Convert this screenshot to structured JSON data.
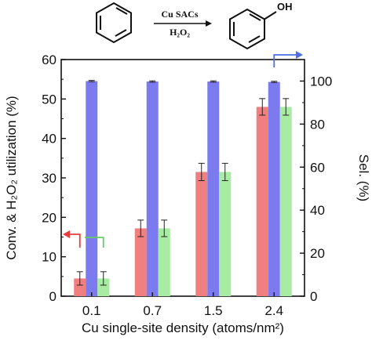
{
  "chart_data": {
    "type": "bar",
    "categories": [
      "0.1",
      "0.7",
      "1.5",
      "2.4"
    ],
    "xlabel": "Cu single-site density (atoms/nm²)",
    "ylabel_left": "Conv. & H₂O₂ utilization (%)",
    "ylabel_right": "Sel. (%)",
    "ylim_left": [
      0,
      60
    ],
    "ylim_right": [
      0,
      110
    ],
    "yticks_left": [
      "0",
      "10",
      "20",
      "30",
      "40",
      "50",
      "60"
    ],
    "yticks_right": [
      "0",
      "20",
      "40",
      "60",
      "80",
      "100"
    ],
    "grid": false,
    "series": [
      {
        "axis": "left",
        "color": "#f08080",
        "values": [
          4.5,
          17.2,
          31.5,
          48.0
        ],
        "errors": [
          1.7,
          2.1,
          2.2,
          2.1
        ]
      },
      {
        "axis": "right",
        "color": "#7b7bef",
        "values": [
          100,
          99.8,
          99.8,
          99.6
        ],
        "errors": [
          0.3,
          0.3,
          0.3,
          0.3
        ]
      },
      {
        "axis": "left",
        "color": "#a8eba3",
        "values": [
          4.5,
          17.2,
          31.5,
          48.0
        ],
        "errors": [
          1.7,
          2.1,
          2.2,
          2.1
        ]
      }
    ],
    "axis_indicators": [
      {
        "points_to": "left",
        "color": "#e83c3c"
      },
      {
        "points_to": "left",
        "color": "#66cc66"
      },
      {
        "points_to": "right",
        "color": "#4a6fe8"
      }
    ]
  },
  "reaction": {
    "catalyst": "Cu SACs",
    "oxidant": "H₂O₂",
    "product_group": "OH"
  }
}
